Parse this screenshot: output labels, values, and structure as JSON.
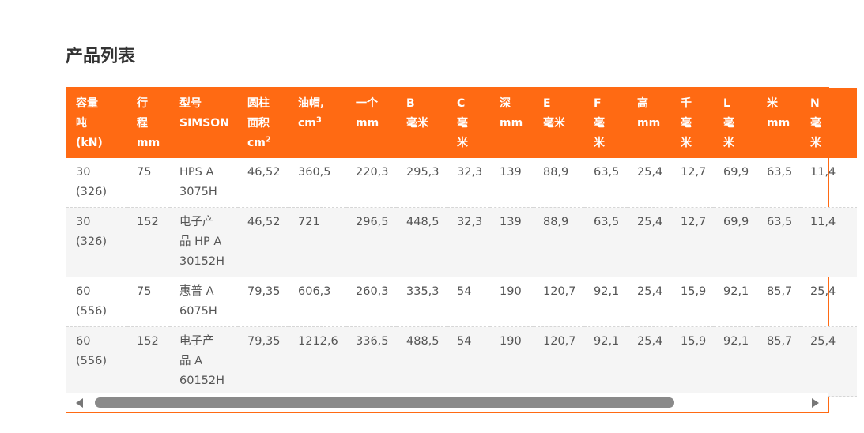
{
  "page": {
    "title": "产品列表"
  },
  "table": {
    "headers": [
      {
        "lines": [
          "容量",
          "吨",
          " (kN)"
        ]
      },
      {
        "lines": [
          "行",
          "程",
          "mm"
        ]
      },
      {
        "lines": [
          "型号",
          "SIMSON"
        ]
      },
      {
        "lines": [
          "圆柱",
          "面积"
        ],
        "unit": "cm",
        "sup": "2"
      },
      {
        "lines": [],
        "unit": "油帽,",
        "unit2": "cm",
        "sup": "3"
      },
      {
        "lines": [
          "一个",
          "mm"
        ]
      },
      {
        "lines": [
          "B",
          "毫米"
        ]
      },
      {
        "lines": [
          "C",
          "毫",
          "米"
        ]
      },
      {
        "lines": [
          "深",
          "mm"
        ]
      },
      {
        "lines": [
          "E",
          "毫米"
        ]
      },
      {
        "lines": [
          "F",
          "毫",
          "米"
        ]
      },
      {
        "lines": [
          "高",
          "mm"
        ]
      },
      {
        "lines": [
          "千",
          "毫",
          "米"
        ]
      },
      {
        "lines": [
          "L",
          "毫",
          "米"
        ]
      },
      {
        "lines": [
          "米",
          "mm"
        ]
      },
      {
        "lines": [
          "N",
          "毫",
          "米"
        ]
      }
    ],
    "rows": [
      [
        [
          "30",
          "(326)"
        ],
        [
          "75"
        ],
        [
          "HPS A",
          "3075H"
        ],
        [
          "46,52"
        ],
        [
          "360,5"
        ],
        [
          "220,3"
        ],
        [
          "295,3"
        ],
        [
          "32,3"
        ],
        [
          "139"
        ],
        [
          "88,9"
        ],
        [
          "63,5"
        ],
        [
          "25,4"
        ],
        [
          "12,7"
        ],
        [
          "69,9"
        ],
        [
          "63,5"
        ],
        [
          "11,4"
        ]
      ],
      [
        [
          "30",
          "(326)"
        ],
        [
          "152"
        ],
        [
          "电子产",
          "品 HP A",
          "30152H"
        ],
        [
          "46,52"
        ],
        [
          "721"
        ],
        [
          "296,5"
        ],
        [
          "448,5"
        ],
        [
          "32,3"
        ],
        [
          "139"
        ],
        [
          "88,9"
        ],
        [
          "63,5"
        ],
        [
          "25,4"
        ],
        [
          "12,7"
        ],
        [
          "69,9"
        ],
        [
          "63,5"
        ],
        [
          "11,4"
        ]
      ],
      [
        [
          "60",
          "(556)"
        ],
        [
          "75"
        ],
        [
          "惠普 A",
          "6075H"
        ],
        [
          "79,35"
        ],
        [
          "606,3"
        ],
        [
          "260,3"
        ],
        [
          "335,3"
        ],
        [
          "54"
        ],
        [
          "190"
        ],
        [
          "120,7"
        ],
        [
          "92,1"
        ],
        [
          "25,4"
        ],
        [
          "15,9"
        ],
        [
          "92,1"
        ],
        [
          "85,7"
        ],
        [
          "25,4"
        ]
      ],
      [
        [
          "60",
          "(556)"
        ],
        [
          "152"
        ],
        [
          "电子产",
          "品 A",
          "60152H"
        ],
        [
          "79,35"
        ],
        [
          "1212,6"
        ],
        [
          "336,5"
        ],
        [
          "488,5"
        ],
        [
          "54"
        ],
        [
          "190"
        ],
        [
          "120,7"
        ],
        [
          "92,1"
        ],
        [
          "25,4"
        ],
        [
          "15,9"
        ],
        [
          "92,1"
        ],
        [
          "85,7"
        ],
        [
          "25,4"
        ]
      ]
    ]
  },
  "colors": {
    "accent": "#ff6a13",
    "row_alt": "#f5f5f5",
    "scroll_thumb": "#8a8a8a"
  },
  "scrollbar": {
    "position_fraction": 0.0,
    "visible_fraction": 0.82
  }
}
